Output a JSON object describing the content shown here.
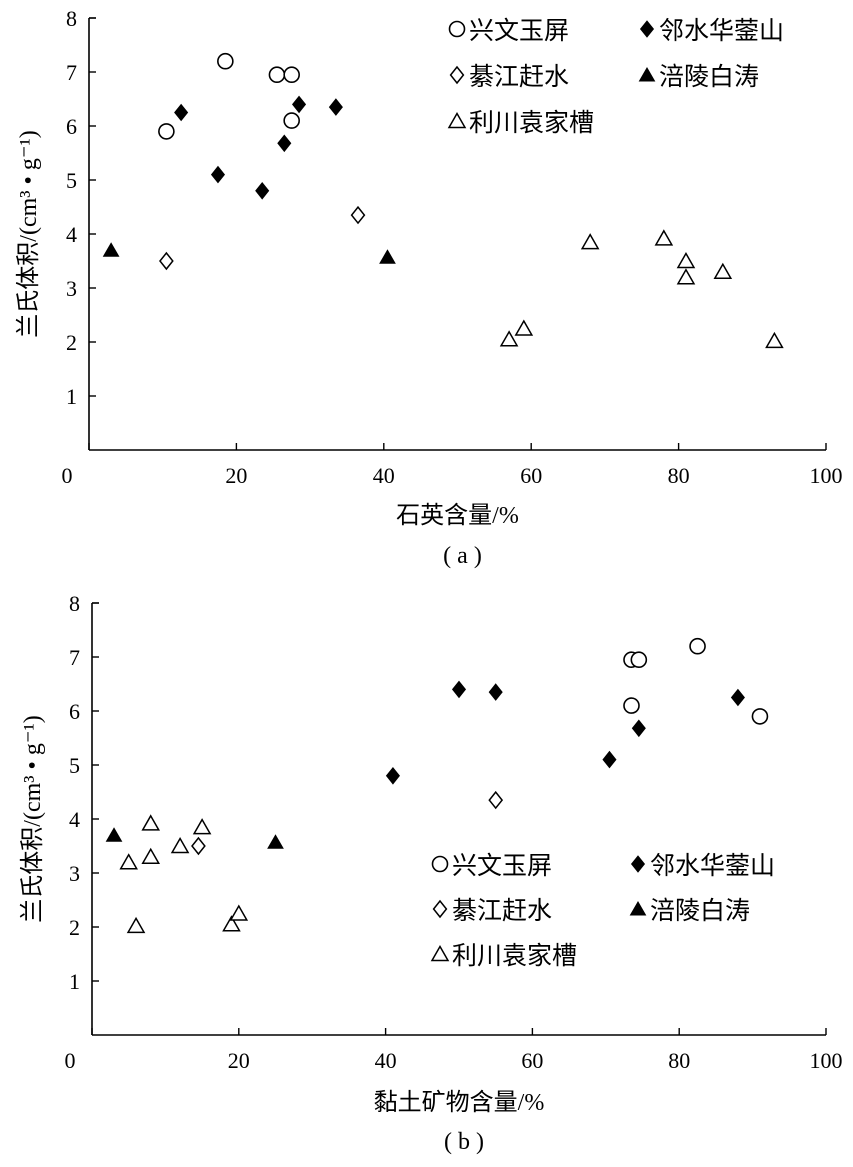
{
  "chart_data": [
    {
      "type": "scatter",
      "panel_label": "( a )",
      "xlabel": "石英含量/%",
      "ylabel": "兰氏体积/(cm³ • g⁻¹)",
      "xlim": [
        0,
        100
      ],
      "ylim": [
        0,
        8
      ],
      "xticks": [
        0,
        20,
        40,
        60,
        80,
        100
      ],
      "yticks": [
        1,
        2,
        3,
        4,
        5,
        6,
        7,
        8
      ],
      "legend_position": "top-right",
      "series": [
        {
          "name": "兴文玉屏",
          "marker": "circle-open",
          "points": [
            [
              10.5,
              5.9
            ],
            [
              18.5,
              7.2
            ],
            [
              25.5,
              6.95
            ],
            [
              27.5,
              6.95
            ],
            [
              27.5,
              6.1
            ]
          ]
        },
        {
          "name": "邻水华蓥山",
          "marker": "diamond-filled",
          "points": [
            [
              12.5,
              6.25
            ],
            [
              17.5,
              5.1
            ],
            [
              23.5,
              4.8
            ],
            [
              26.5,
              5.68
            ],
            [
              28.5,
              6.4
            ],
            [
              33.5,
              6.35
            ]
          ]
        },
        {
          "name": "綦江赶水",
          "marker": "diamond-open",
          "points": [
            [
              10.5,
              3.5
            ],
            [
              36.5,
              4.35
            ]
          ]
        },
        {
          "name": "涪陵白涛",
          "marker": "triangle-filled",
          "points": [
            [
              3,
              3.7
            ],
            [
              40.5,
              3.57
            ]
          ]
        },
        {
          "name": "利川袁家槽",
          "marker": "triangle-open",
          "points": [
            [
              57,
              2.05
            ],
            [
              59,
              2.25
            ],
            [
              68,
              3.85
            ],
            [
              78,
              3.92
            ],
            [
              81,
              3.5
            ],
            [
              81,
              3.2
            ],
            [
              86,
              3.3
            ],
            [
              93,
              2.02
            ]
          ]
        }
      ]
    },
    {
      "type": "scatter",
      "panel_label": "( b )",
      "xlabel": "黏土矿物含量/%",
      "ylabel": "兰氏体积/(cm³ • g⁻¹)",
      "xlim": [
        0,
        100
      ],
      "ylim": [
        0,
        8
      ],
      "xticks": [
        0,
        20,
        40,
        60,
        80,
        100
      ],
      "yticks": [
        1,
        2,
        3,
        4,
        5,
        6,
        7,
        8
      ],
      "legend_position": "bottom-right",
      "series": [
        {
          "name": "兴文玉屏",
          "marker": "circle-open",
          "points": [
            [
              73.5,
              6.95
            ],
            [
              74.5,
              6.95
            ],
            [
              82.5,
              7.2
            ],
            [
              73.5,
              6.1
            ],
            [
              91,
              5.9
            ]
          ]
        },
        {
          "name": "邻水华蓥山",
          "marker": "diamond-filled",
          "points": [
            [
              41,
              4.8
            ],
            [
              50,
              6.4
            ],
            [
              55,
              6.35
            ],
            [
              70.5,
              5.1
            ],
            [
              74.5,
              5.68
            ],
            [
              88,
              6.25
            ]
          ]
        },
        {
          "name": "綦江赶水",
          "marker": "diamond-open",
          "points": [
            [
              55,
              4.35
            ],
            [
              14.5,
              3.5
            ]
          ]
        },
        {
          "name": "涪陵白涛",
          "marker": "triangle-filled",
          "points": [
            [
              3,
              3.7
            ],
            [
              25,
              3.57
            ]
          ]
        },
        {
          "name": "利川袁家槽",
          "marker": "triangle-open",
          "points": [
            [
              5,
              3.2
            ],
            [
              6,
              2.02
            ],
            [
              8,
              3.92
            ],
            [
              8,
              3.3
            ],
            [
              12,
              3.5
            ],
            [
              15,
              3.85
            ],
            [
              19,
              2.05
            ],
            [
              20,
              2.25
            ]
          ]
        }
      ]
    }
  ]
}
